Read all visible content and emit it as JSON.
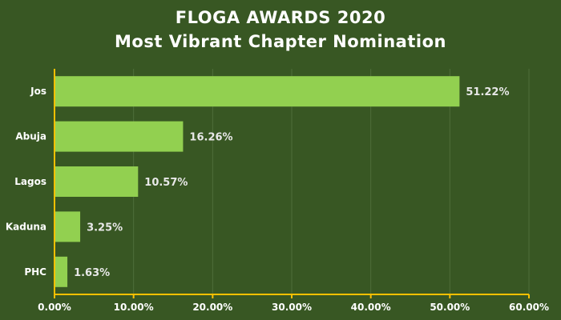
{
  "colors": {
    "background": "#385723",
    "bar": "#92d050",
    "axis": "#ffc000",
    "grid": "#4e6e3a",
    "text": "#ffffff"
  },
  "chart_data": {
    "type": "bar",
    "orientation": "horizontal",
    "title": "FLOGA AWARDS 2020",
    "subtitle": "Most Vibrant Chapter Nomination",
    "categories": [
      "Jos",
      "Abuja",
      "Lagos",
      "Kaduna",
      "PHC"
    ],
    "values": [
      51.22,
      16.26,
      10.57,
      3.25,
      1.63
    ],
    "value_labels": [
      "51.22%",
      "16.26%",
      "10.57%",
      "3.25%",
      "1.63%"
    ],
    "xlim": [
      0,
      60
    ],
    "x_ticks": [
      0,
      10,
      20,
      30,
      40,
      50,
      60
    ],
    "x_tick_labels": [
      "0.00%",
      "10.00%",
      "20.00%",
      "30.00%",
      "40.00%",
      "50.00%",
      "60.00%"
    ],
    "xlabel": "",
    "ylabel": "",
    "grid": true,
    "legend": false
  }
}
